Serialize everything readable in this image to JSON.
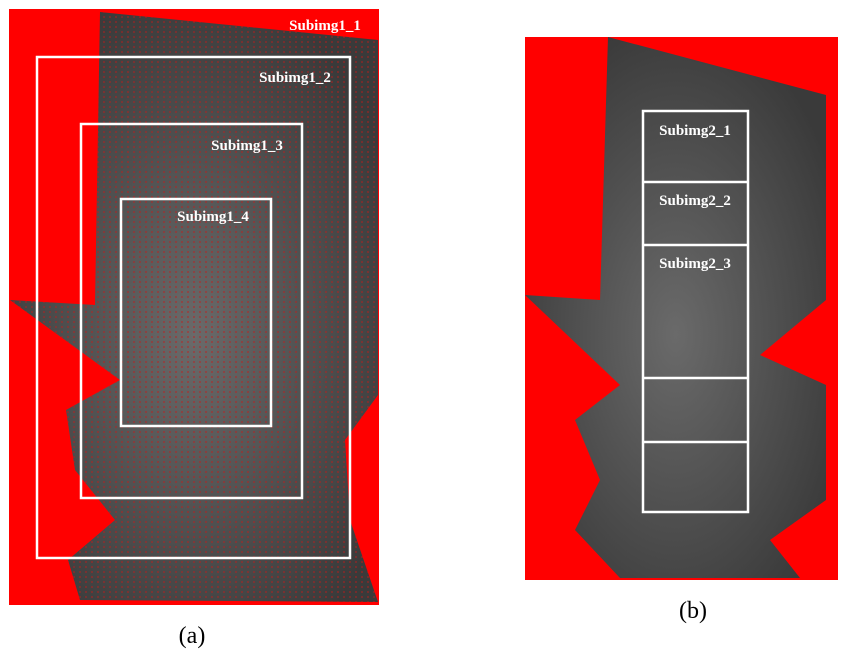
{
  "panels": [
    {
      "caption": "(a)",
      "subimages": [
        "Subimg1_1",
        "Subimg1_2",
        "Subimg1_3",
        "Subimg1_4"
      ]
    },
    {
      "caption": "(b)",
      "subimages": [
        "Subimg2_1",
        "Subimg2_2",
        "Subimg2_3"
      ]
    }
  ]
}
